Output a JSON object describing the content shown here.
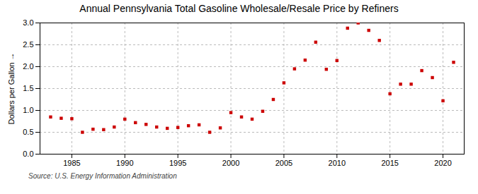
{
  "chart_data": {
    "type": "scatter",
    "title": "Annual Pennsylvania Total Gasoline Wholesale/Resale Price by Refiners",
    "ylabel": "Dollars per Gallon",
    "source": "Source: U.S. Energy Information Administration",
    "x": [
      1983,
      1984,
      1985,
      1986,
      1987,
      1988,
      1989,
      1990,
      1991,
      1992,
      1993,
      1994,
      1995,
      1996,
      1997,
      1998,
      1999,
      2000,
      2001,
      2002,
      2003,
      2004,
      2005,
      2006,
      2007,
      2008,
      2009,
      2010,
      2011,
      2012,
      2013,
      2014,
      2015,
      2016,
      2017,
      2018,
      2019,
      2020,
      2021
    ],
    "values": [
      0.85,
      0.82,
      0.81,
      0.5,
      0.57,
      0.56,
      0.62,
      0.8,
      0.72,
      0.68,
      0.62,
      0.59,
      0.61,
      0.65,
      0.67,
      0.5,
      0.6,
      0.95,
      0.85,
      0.8,
      0.98,
      1.25,
      1.63,
      1.95,
      2.15,
      2.56,
      1.94,
      2.14,
      2.88,
      3.0,
      2.83,
      2.6,
      1.38,
      1.6,
      1.6,
      1.91,
      1.75,
      1.22,
      2.1
    ],
    "color": "#cc0000",
    "marker": "square",
    "xlim": [
      1982,
      2022
    ],
    "xticks": [
      1985,
      1990,
      1995,
      2000,
      2005,
      2010,
      2015,
      2020
    ],
    "ylim": [
      0.0,
      3.0
    ],
    "yticks": [
      {
        "value": 0,
        "label": "0.0"
      },
      0.5,
      {
        "value": 1,
        "label": "1.0"
      },
      1.5,
      {
        "value": 2,
        "label": "2.0"
      },
      2.5,
      {
        "value": 3,
        "label": "3.0"
      }
    ],
    "grid": true
  }
}
